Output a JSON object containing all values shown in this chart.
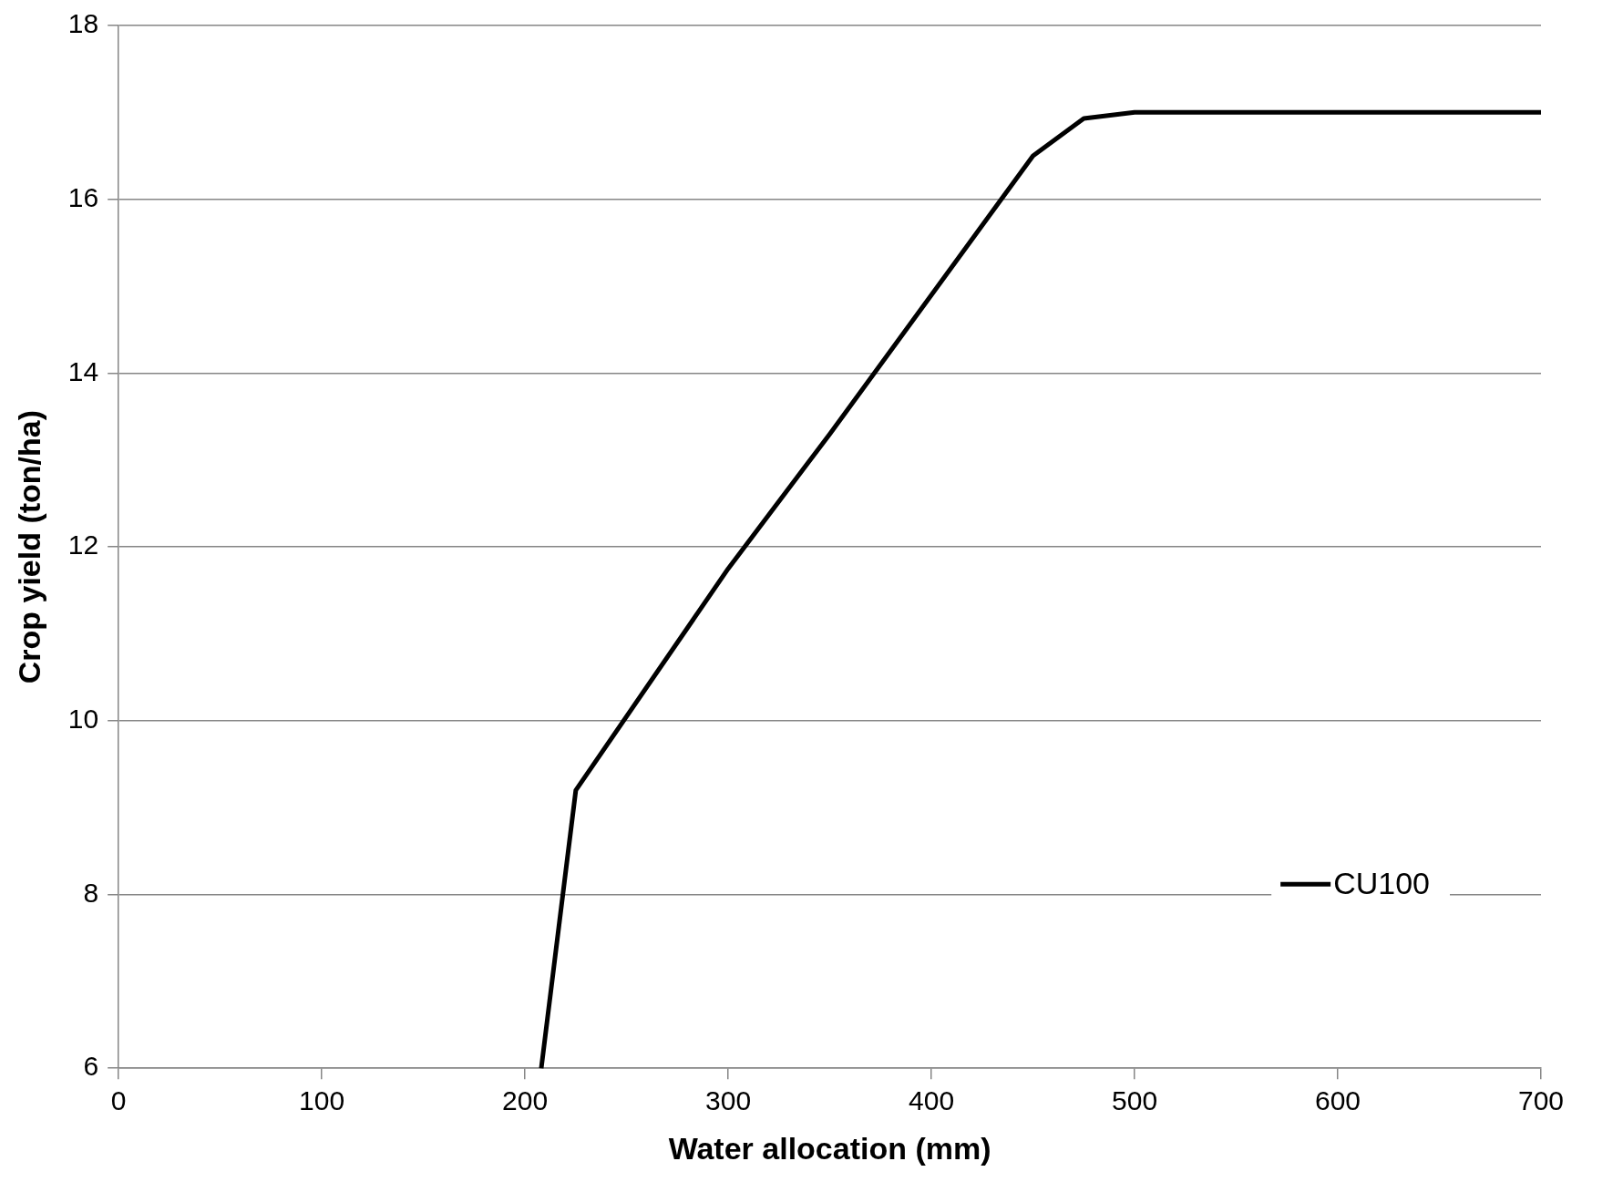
{
  "chart_data": {
    "type": "line",
    "xlabel": "Water allocation (mm)",
    "ylabel": "Crop yield (ton/ha)",
    "xlim": [
      0,
      700
    ],
    "xticks": [
      0,
      100,
      200,
      300,
      400,
      500,
      600,
      700
    ],
    "ylim": [
      6,
      18
    ],
    "yticks": [
      6,
      8,
      10,
      12,
      14,
      16,
      18
    ],
    "grid": "y",
    "legend": "bottom right",
    "marker": "none",
    "line_style": "solid",
    "series": [
      {
        "name": "CU100",
        "color": "#000000",
        "x": [
          208,
          225,
          300,
          350,
          450,
          475,
          500,
          700
        ],
        "values": [
          6,
          9.2,
          11.75,
          13.3,
          16.5,
          16.93,
          17,
          17
        ]
      }
    ]
  }
}
